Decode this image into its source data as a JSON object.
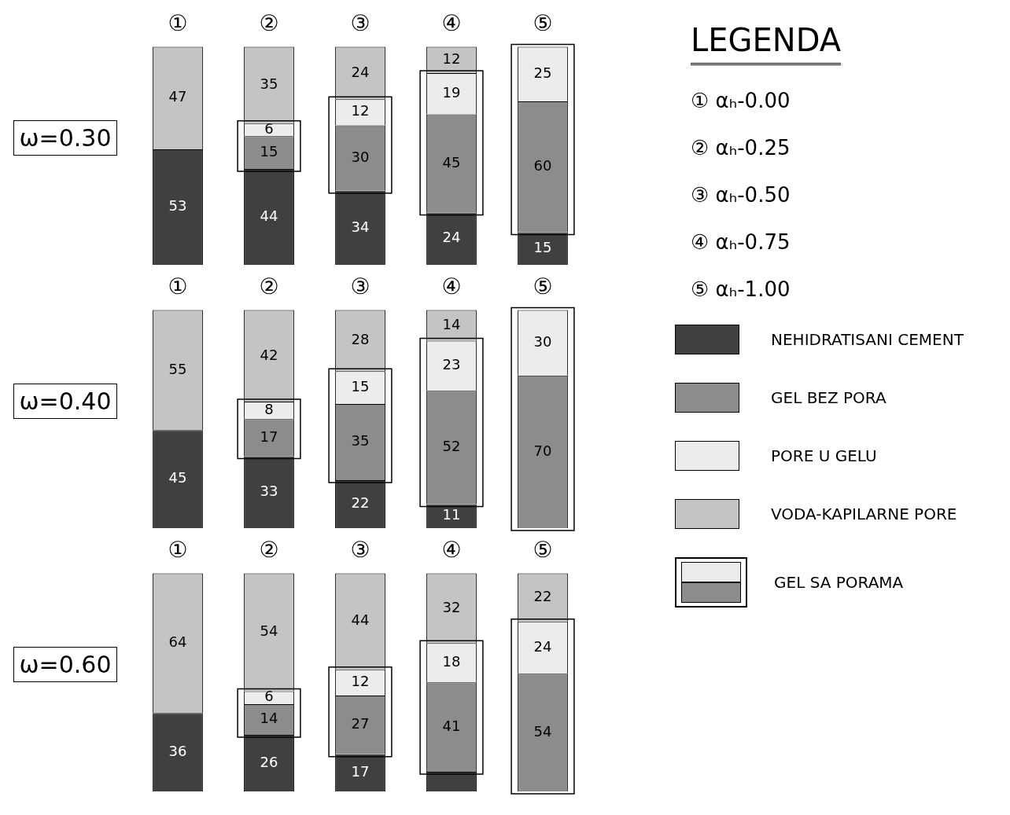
{
  "chart_data": [
    {
      "type": "bar",
      "title": "ω=0.30",
      "categories": [
        "①",
        "②",
        "③",
        "④",
        "⑤"
      ],
      "stacked": true,
      "tick_labels": "x",
      "legend": "right",
      "annotations": [
        "GEL SA PORAMA"
      ],
      "series": [
        {
          "name": "NEHIDRATISANI CEMENT",
          "color": "#404040",
          "values": [
            53,
            44,
            34,
            24,
            15
          ],
          "value_labels": [
            "53",
            "44",
            "34",
            "24",
            "15"
          ]
        },
        {
          "name": "GEL BEZ PORA",
          "color": "#8c8c8c",
          "values": [
            null,
            15,
            30,
            45,
            60
          ],
          "value_labels": [
            null,
            "15",
            "30",
            "45",
            "60"
          ]
        },
        {
          "name": "PORE U GELU",
          "color": "#ececec",
          "values": [
            null,
            6,
            12,
            19,
            25
          ],
          "value_labels": [
            null,
            "6",
            "12",
            "19",
            "25"
          ]
        },
        {
          "name": "VODA-KAPILARNE PORE",
          "color": "#c4c4c4",
          "values": [
            47,
            35,
            24,
            12,
            null
          ],
          "value_labels": [
            "47",
            "35",
            "24",
            "12",
            null
          ]
        }
      ]
    },
    {
      "type": "bar",
      "title": "ω=0.40",
      "categories": [
        "①",
        "②",
        "③",
        "④",
        "⑤"
      ],
      "stacked": true,
      "tick_labels": "x",
      "series": [
        {
          "color": "#404040",
          "values": [
            45,
            33,
            22,
            11,
            null
          ],
          "value_labels": [
            "45",
            "33",
            "22",
            "11",
            null
          ]
        },
        {
          "color": "#8c8c8c",
          "values": [
            null,
            17,
            35,
            52,
            70
          ],
          "value_labels": [
            null,
            "17",
            "35",
            "52",
            "70"
          ]
        },
        {
          "color": "#ececec",
          "values": [
            null,
            8,
            15,
            23,
            30
          ],
          "value_labels": [
            null,
            "8",
            "15",
            "23",
            "30"
          ]
        },
        {
          "color": "#c4c4c4",
          "values": [
            55,
            42,
            28,
            14,
            null
          ],
          "value_labels": [
            "55",
            "42",
            "28",
            "14",
            null
          ]
        }
      ]
    },
    {
      "type": "bar",
      "title": "ω=0.60",
      "categories": [
        "①",
        "②",
        "③",
        "④",
        "⑤"
      ],
      "stacked": true,
      "tick_labels": "x",
      "series": [
        {
          "color": "#404040",
          "values": [
            36,
            26,
            17,
            9,
            null
          ],
          "value_labels": [
            "36",
            "26",
            "17",
            null,
            null
          ]
        },
        {
          "color": "#8c8c8c",
          "values": [
            null,
            14,
            27,
            41,
            54
          ],
          "value_labels": [
            null,
            "14",
            "27",
            "41",
            "54"
          ]
        },
        {
          "color": "#ececec",
          "values": [
            null,
            6,
            12,
            18,
            24
          ],
          "value_labels": [
            null,
            "6",
            "12",
            "18",
            "24"
          ]
        },
        {
          "color": "#c4c4c4",
          "values": [
            64,
            54,
            44,
            32,
            22
          ],
          "value_labels": [
            "64",
            "54",
            "44",
            "32",
            "22"
          ]
        }
      ]
    },
    {
      "type": "other",
      "title": "LEGENDA",
      "annotations": [
        "① αₕ-0.00",
        "② αₕ-0.25",
        "③ αₕ-0.50",
        "④ αₕ-0.75",
        "⑤ αₕ-1.00"
      ]
    }
  ]
}
